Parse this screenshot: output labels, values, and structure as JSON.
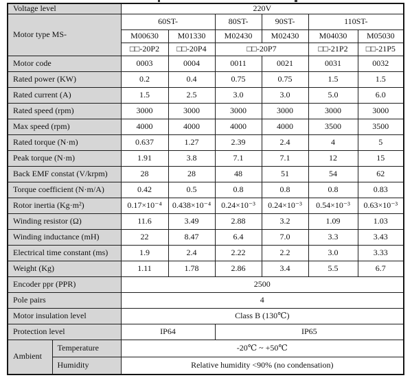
{
  "colors": {
    "label_cell_bg": "#d6d6d6",
    "grid_border": "#1c1c1c",
    "text": "#101010",
    "page_bg": "#ffffff"
  },
  "table": {
    "voltage": {
      "label": "Voltage level",
      "value": "220V"
    },
    "motor_type": {
      "label": "Motor type MS-",
      "series": [
        "60ST-",
        "80ST-",
        "90ST-",
        "110ST-"
      ],
      "models": [
        "M00630",
        "M01330",
        "M02430",
        "M02430",
        "M04030",
        "M05030"
      ],
      "designations": [
        "□□-20P2",
        "□□-20P4",
        "□□-20P7",
        "□□-21P2",
        "□□-21P5"
      ]
    },
    "specs": [
      {
        "label": "Motor code",
        "values": [
          "0003",
          "0004",
          "0011",
          "0021",
          "0031",
          "0032"
        ]
      },
      {
        "label": "Rated power (KW)",
        "values": [
          "0.2",
          "0.4",
          "0.75",
          "0.75",
          "1.5",
          "1.5"
        ]
      },
      {
        "label": "Rated current (A)",
        "values": [
          "1.5",
          "2.5",
          "3.0",
          "3.0",
          "5.0",
          "6.0"
        ]
      },
      {
        "label": "Rated speed (rpm)",
        "values": [
          "3000",
          "3000",
          "3000",
          "3000",
          "3000",
          "3000"
        ]
      },
      {
        "label": "Max speed (rpm)",
        "values": [
          "4000",
          "4000",
          "4000",
          "4000",
          "3500",
          "3500"
        ]
      },
      {
        "label": "Rated torque (N·m)",
        "values": [
          "0.637",
          "1.27",
          "2.39",
          "2.4",
          "4",
          "5"
        ]
      },
      {
        "label": "Peak torque (N·m)",
        "values": [
          "1.91",
          "3.8",
          "7.1",
          "7.1",
          "12",
          "15"
        ]
      },
      {
        "label": "Back EMF constat (V/krpm)",
        "values": [
          "28",
          "28",
          "48",
          "51",
          "54",
          "62"
        ]
      },
      {
        "label": "Torque coefficient (N·m/A)",
        "values": [
          "0.42",
          "0.5",
          "0.8",
          "0.8",
          "0.8",
          "0.83"
        ]
      },
      {
        "label": "Rotor inertia (Kg·m²)",
        "values": [
          "0.17×10⁻⁴",
          "0.438×10⁻⁴",
          "0.24×10⁻³",
          "0.24×10⁻³",
          "0.54×10⁻³",
          "0.63×10⁻³"
        ]
      },
      {
        "label": "Winding resistor (Ω)",
        "values": [
          "11.6",
          "3.49",
          "2.88",
          "3.2",
          "1.09",
          "1.03"
        ]
      },
      {
        "label": "Winding inductance (mH)",
        "values": [
          "22",
          "8.47",
          "6.4",
          "7.0",
          "3.3",
          "3.43"
        ]
      },
      {
        "label": "Electrical time constant (ms)",
        "values": [
          "1.9",
          "2.4",
          "2.22",
          "2.2",
          "3.0",
          "3.33"
        ]
      },
      {
        "label": "Weight (Kg)",
        "values": [
          "1.11",
          "1.78",
          "2.86",
          "3.4",
          "5.5",
          "6.7"
        ]
      }
    ],
    "full_rows": [
      {
        "label": "Encoder ppr (PPR)",
        "value": "2500"
      },
      {
        "label": "Pole pairs",
        "value": "4"
      },
      {
        "label": "Motor insulation level",
        "value": "Class B (130℃)"
      }
    ],
    "protection": {
      "label": "Protection level",
      "left": "IP64",
      "right": "IP65"
    },
    "ambient": {
      "label": "Ambient",
      "temperature": {
        "label": "Temperature",
        "value": "-20℃ ~ +50℃"
      },
      "humidity": {
        "label": "Humidity",
        "value": "Relative humidity <90% (no condensation)"
      }
    }
  }
}
